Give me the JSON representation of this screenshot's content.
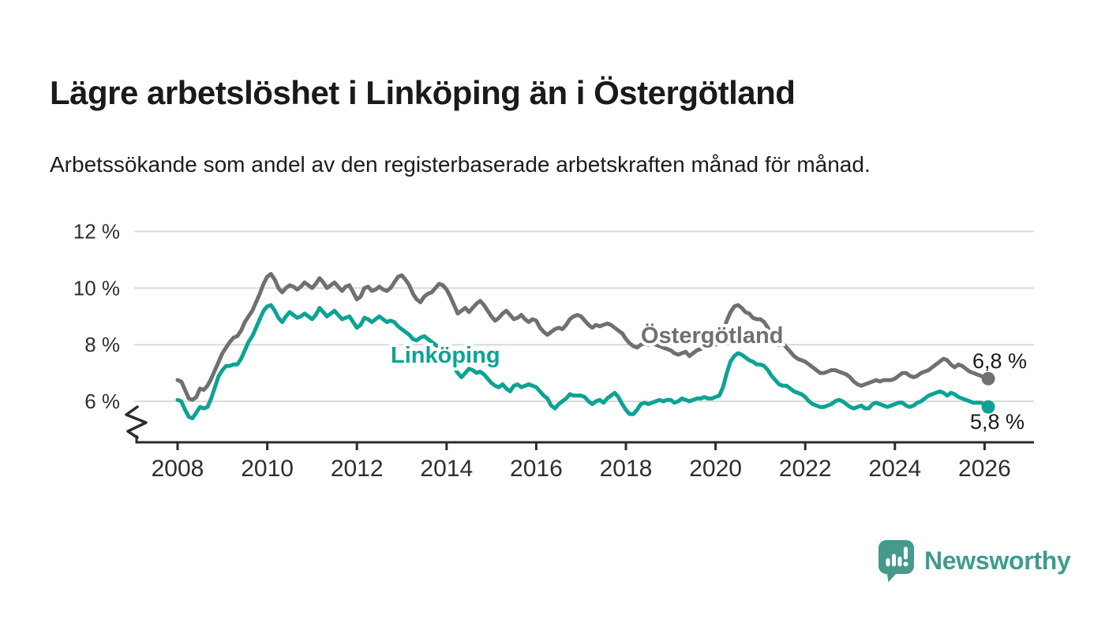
{
  "header": {
    "title": "Lägre arbetslöshet i Linköping än i Östergötland",
    "subtitle": "Arbetssökande som andel av den registerbaserade arbetskraften månad för månad."
  },
  "footer": {
    "brand": "Newsworthy"
  },
  "colors": {
    "linkoping": "#0da394",
    "ostergotland": "#707070",
    "grid": "#d9d9d9",
    "axis": "#2b2b2b",
    "tick_text": "#2e2e2e",
    "value_text": "#1a1a1a",
    "brand": "#459a8d"
  },
  "chart_data": {
    "type": "line",
    "title": "Lägre arbetslöshet i Linköping än i Östergötland",
    "subtitle": "Arbetssökande som andel av den registerbaserade arbetskraften månad för månad.",
    "x_unit": "monthly",
    "x_start_year": 2008,
    "x_start_month": 1,
    "x_end_year": 2026,
    "x_end_month": 2,
    "ylim": [
      4.6,
      12.5
    ],
    "axis_break": true,
    "grid": true,
    "y_ticks": [
      {
        "v": 6,
        "label": "6 %"
      },
      {
        "v": 8,
        "label": "8 %"
      },
      {
        "v": 10,
        "label": "10 %"
      },
      {
        "v": 12,
        "label": "12 %"
      }
    ],
    "x_ticks": [
      {
        "v": 2008,
        "label": "2008"
      },
      {
        "v": 2010,
        "label": "2010"
      },
      {
        "v": 2012,
        "label": "2012"
      },
      {
        "v": 2014,
        "label": "2014"
      },
      {
        "v": 2016,
        "label": "2016"
      },
      {
        "v": 2018,
        "label": "2018"
      },
      {
        "v": 2020,
        "label": "2020"
      },
      {
        "v": 2022,
        "label": "2022"
      },
      {
        "v": 2024,
        "label": "2024"
      },
      {
        "v": 2026,
        "label": "2026"
      }
    ],
    "series": [
      {
        "id": "ostergotland",
        "name": "Östergötland",
        "color": "#707070",
        "end_label": "6,8 %",
        "values": [
          6.75,
          6.7,
          6.4,
          6.1,
          6.05,
          6.15,
          6.45,
          6.4,
          6.55,
          6.8,
          7.1,
          7.4,
          7.7,
          7.9,
          8.1,
          8.25,
          8.3,
          8.5,
          8.8,
          9.0,
          9.2,
          9.5,
          9.8,
          10.15,
          10.4,
          10.5,
          10.3,
          10.0,
          9.85,
          10.0,
          10.1,
          10.05,
          9.95,
          10.05,
          10.2,
          10.1,
          10.0,
          10.15,
          10.35,
          10.2,
          10.0,
          10.1,
          10.2,
          10.05,
          9.9,
          10.05,
          10.1,
          9.85,
          9.6,
          9.7,
          10.0,
          10.05,
          9.9,
          9.95,
          10.05,
          9.95,
          9.9,
          10.0,
          10.2,
          10.4,
          10.45,
          10.3,
          10.1,
          9.8,
          9.6,
          9.5,
          9.7,
          9.8,
          9.85,
          10.0,
          10.15,
          10.1,
          9.95,
          9.7,
          9.4,
          9.1,
          9.2,
          9.3,
          9.15,
          9.3,
          9.45,
          9.55,
          9.4,
          9.2,
          9.0,
          8.85,
          8.95,
          9.1,
          9.2,
          9.05,
          8.9,
          8.95,
          9.05,
          8.9,
          8.8,
          8.9,
          8.85,
          8.6,
          8.45,
          8.35,
          8.45,
          8.55,
          8.6,
          8.55,
          8.7,
          8.9,
          9.0,
          9.05,
          9.0,
          8.85,
          8.7,
          8.6,
          8.7,
          8.65,
          8.7,
          8.75,
          8.7,
          8.6,
          8.5,
          8.4,
          8.2,
          8.05,
          7.95,
          7.9,
          8.0,
          8.05,
          8.0,
          8.05,
          8.0,
          7.95,
          7.9,
          7.85,
          7.8,
          7.7,
          7.65,
          7.7,
          7.75,
          7.6,
          7.7,
          7.8,
          7.85,
          7.9,
          7.95,
          7.95,
          8.0,
          8.1,
          8.4,
          8.85,
          9.15,
          9.35,
          9.4,
          9.3,
          9.15,
          9.1,
          8.95,
          8.9,
          8.9,
          8.8,
          8.6,
          8.3,
          8.1,
          8.0,
          8.05,
          7.9,
          7.75,
          7.6,
          7.5,
          7.45,
          7.4,
          7.3,
          7.2,
          7.1,
          7.0,
          7.0,
          7.05,
          7.1,
          7.1,
          7.05,
          7.0,
          6.95,
          6.85,
          6.7,
          6.6,
          6.55,
          6.6,
          6.65,
          6.7,
          6.75,
          6.7,
          6.75,
          6.75,
          6.75,
          6.8,
          6.9,
          7.0,
          7.0,
          6.9,
          6.85,
          6.9,
          7.0,
          7.05,
          7.1,
          7.2,
          7.3,
          7.4,
          7.5,
          7.45,
          7.3,
          7.2,
          7.3,
          7.25,
          7.15,
          7.05,
          7.0,
          6.95,
          6.9,
          6.85,
          6.8
        ]
      },
      {
        "id": "linkoping",
        "name": "Linköping",
        "color": "#0da394",
        "end_label": "5,8 %",
        "values": [
          6.05,
          6.0,
          5.7,
          5.45,
          5.4,
          5.6,
          5.8,
          5.75,
          5.8,
          6.1,
          6.5,
          6.9,
          7.1,
          7.25,
          7.25,
          7.3,
          7.3,
          7.5,
          7.8,
          8.1,
          8.3,
          8.6,
          8.9,
          9.2,
          9.35,
          9.4,
          9.2,
          8.95,
          8.8,
          9.0,
          9.15,
          9.05,
          8.95,
          9.0,
          9.1,
          9.0,
          8.9,
          9.05,
          9.3,
          9.15,
          9.0,
          9.1,
          9.2,
          9.05,
          8.9,
          8.95,
          9.0,
          8.8,
          8.6,
          8.7,
          8.95,
          8.9,
          8.8,
          8.9,
          9.0,
          8.9,
          8.8,
          8.85,
          8.8,
          8.65,
          8.55,
          8.45,
          8.35,
          8.2,
          8.15,
          8.25,
          8.3,
          8.2,
          8.1,
          8.0,
          7.9,
          7.75,
          7.6,
          7.45,
          7.2,
          7.0,
          6.85,
          7.0,
          7.15,
          7.1,
          7.0,
          7.05,
          6.95,
          6.8,
          6.65,
          6.55,
          6.5,
          6.6,
          6.45,
          6.35,
          6.55,
          6.6,
          6.5,
          6.55,
          6.6,
          6.55,
          6.5,
          6.35,
          6.2,
          6.1,
          5.85,
          5.75,
          5.9,
          6.0,
          6.1,
          6.25,
          6.2,
          6.2,
          6.2,
          6.15,
          6.0,
          5.9,
          6.0,
          6.05,
          5.95,
          6.1,
          6.2,
          6.3,
          6.15,
          5.9,
          5.7,
          5.55,
          5.55,
          5.7,
          5.9,
          5.95,
          5.9,
          5.95,
          6.0,
          6.05,
          6.0,
          6.05,
          6.05,
          5.95,
          6.0,
          6.1,
          6.05,
          6.0,
          6.05,
          6.1,
          6.1,
          6.15,
          6.1,
          6.1,
          6.15,
          6.2,
          6.5,
          7.0,
          7.4,
          7.6,
          7.7,
          7.65,
          7.55,
          7.45,
          7.4,
          7.3,
          7.3,
          7.25,
          7.1,
          6.9,
          6.75,
          6.6,
          6.55,
          6.55,
          6.45,
          6.35,
          6.3,
          6.25,
          6.15,
          6.0,
          5.9,
          5.85,
          5.8,
          5.8,
          5.85,
          5.9,
          6.0,
          6.05,
          6.0,
          5.9,
          5.8,
          5.75,
          5.8,
          5.85,
          5.75,
          5.75,
          5.9,
          5.95,
          5.9,
          5.85,
          5.8,
          5.85,
          5.9,
          5.95,
          5.95,
          5.85,
          5.8,
          5.85,
          5.95,
          6.0,
          6.1,
          6.2,
          6.25,
          6.3,
          6.35,
          6.3,
          6.2,
          6.3,
          6.25,
          6.15,
          6.1,
          6.05,
          6.0,
          5.95,
          5.95,
          5.95,
          5.9,
          5.8
        ]
      }
    ]
  }
}
